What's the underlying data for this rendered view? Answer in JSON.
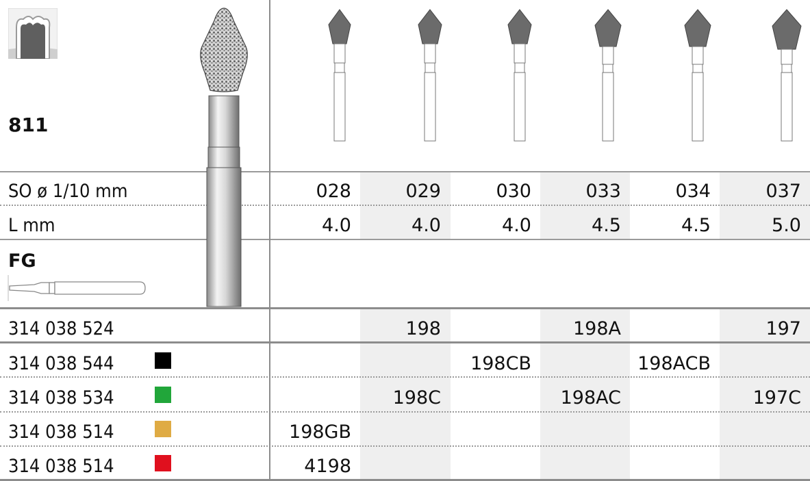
{
  "product_code": "811",
  "shank_type": "FG",
  "rows": [
    {
      "label": "SO ø 1/10 mm",
      "values": [
        "028",
        "029",
        "030",
        "033",
        "034",
        "037"
      ]
    },
    {
      "label": "L mm",
      "values": [
        "4.0",
        "4.0",
        "4.0",
        "4.5",
        "4.5",
        "5.0"
      ]
    }
  ],
  "articles": [
    {
      "number": "314 038 524",
      "color": null,
      "cells": [
        "",
        "198",
        "",
        "198A",
        "",
        "197"
      ]
    },
    {
      "number": "314 038 544",
      "color": "#000000",
      "cells": [
        "",
        "",
        "198CB",
        "",
        "198ACB",
        ""
      ]
    },
    {
      "number": "314 038 534",
      "color": "#21a63a",
      "cells": [
        "",
        "198C",
        "",
        "198AC",
        "",
        "197C"
      ]
    },
    {
      "number": "314 038 514",
      "color": "#dfab44",
      "cells": [
        "198GB",
        "",
        "",
        "",
        "",
        ""
      ]
    },
    {
      "number": "314 038 514",
      "color": "#e0101e",
      "cells": [
        "4198",
        "",
        "",
        "",
        "",
        ""
      ]
    }
  ],
  "icons": {
    "tooth": "crown-tooth-icon",
    "bur": "diamond-bur-image",
    "fg_shank": "fg-shank-icon"
  },
  "colors": {
    "shade": "#efefef",
    "bur_head": "#6b6b6b",
    "rule": "#9a9a9a"
  }
}
